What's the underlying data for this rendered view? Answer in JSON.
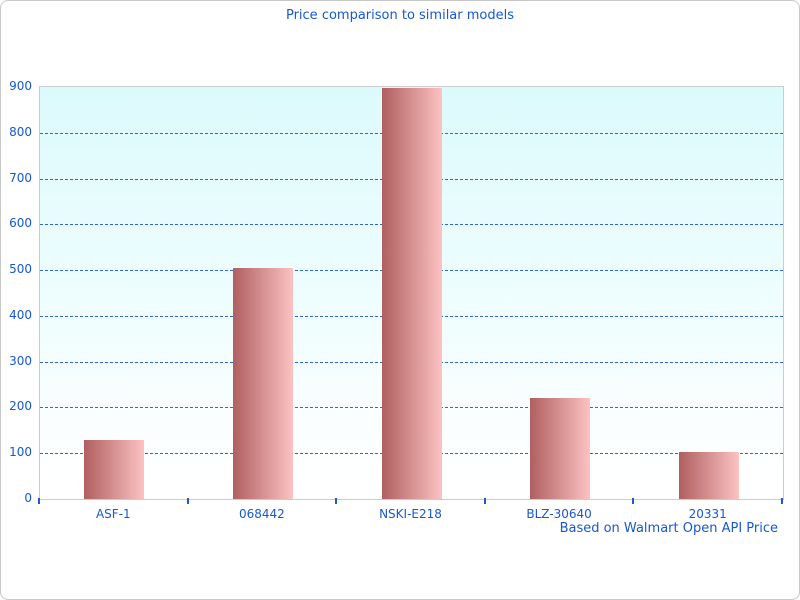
{
  "window": {
    "background": "#ffffff",
    "border_color": "#c9c9c9"
  },
  "chart_data": {
    "type": "bar",
    "title": "Price comparison to similar models",
    "footer": "Based on Walmart Open API Price",
    "xlabel": "",
    "ylabel": "",
    "categories": [
      "ASF-1",
      "068442",
      "NSKI-E218",
      "BLZ-30640",
      "20331"
    ],
    "values": [
      130,
      505,
      897,
      220,
      102
    ],
    "ylim": [
      0,
      900
    ],
    "yticks": [
      0,
      100,
      200,
      300,
      400,
      500,
      600,
      700,
      800,
      900
    ],
    "grid": "horizontal-dashed",
    "legend": "none",
    "colors": {
      "title_text": "#1758d0",
      "axis_text": "#1758d0",
      "gridline": "#3465c8",
      "axis_tick": "#2458c8",
      "plot_border": "#cccccc",
      "plot_bg_top": "#dcfafc",
      "plot_bg_mid": "#ecfdfe",
      "plot_bg_bottom": "#ffffff",
      "bar_gradient_dark": "#b05f5f",
      "bar_gradient_light": "#fcc2c2"
    }
  }
}
